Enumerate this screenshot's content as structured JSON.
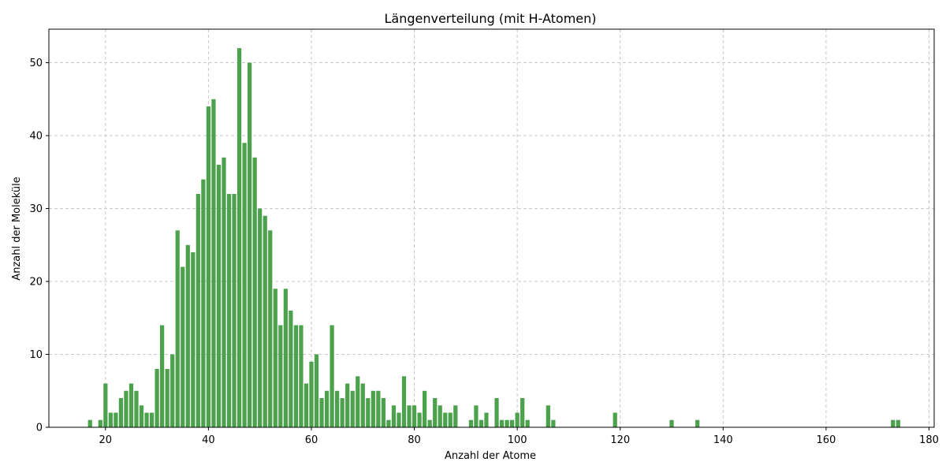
{
  "chart_data": {
    "type": "bar",
    "title": "Längenverteilung (mit H-Atomen)",
    "xlabel": "Anzahl der Atome",
    "ylabel": "Anzahl der Moleküle",
    "xlim": [
      9,
      181
    ],
    "ylim": [
      0,
      54.6
    ],
    "xticks": [
      20,
      40,
      60,
      80,
      100,
      120,
      140,
      160,
      180
    ],
    "yticks": [
      0,
      10,
      20,
      30,
      40,
      50
    ],
    "grid": true,
    "bar_color": "#4ca24c",
    "x": [
      17,
      19,
      20,
      21,
      22,
      23,
      24,
      25,
      26,
      27,
      28,
      29,
      30,
      31,
      32,
      33,
      34,
      35,
      36,
      37,
      38,
      39,
      40,
      41,
      42,
      43,
      44,
      45,
      46,
      47,
      48,
      49,
      50,
      51,
      52,
      53,
      54,
      55,
      56,
      57,
      58,
      59,
      60,
      61,
      62,
      63,
      64,
      65,
      66,
      67,
      68,
      69,
      70,
      71,
      72,
      73,
      74,
      75,
      76,
      77,
      78,
      79,
      80,
      81,
      82,
      83,
      84,
      85,
      86,
      87,
      88,
      91,
      92,
      93,
      94,
      96,
      97,
      98,
      99,
      100,
      101,
      102,
      106,
      107,
      119,
      130,
      135,
      173,
      174
    ],
    "values": [
      1,
      1,
      6,
      2,
      2,
      4,
      5,
      6,
      5,
      3,
      2,
      2,
      8,
      14,
      8,
      10,
      27,
      22,
      25,
      24,
      32,
      34,
      44,
      45,
      36,
      37,
      32,
      32,
      52,
      39,
      50,
      37,
      30,
      29,
      27,
      19,
      14,
      19,
      16,
      14,
      14,
      6,
      9,
      10,
      4,
      5,
      14,
      5,
      4,
      6,
      5,
      7,
      6,
      4,
      5,
      5,
      4,
      1,
      3,
      2,
      7,
      3,
      3,
      2,
      5,
      1,
      4,
      3,
      2,
      2,
      3,
      1,
      3,
      1,
      2,
      4,
      1,
      1,
      1,
      2,
      4,
      1,
      3,
      1,
      2,
      1,
      1,
      1,
      1
    ]
  }
}
